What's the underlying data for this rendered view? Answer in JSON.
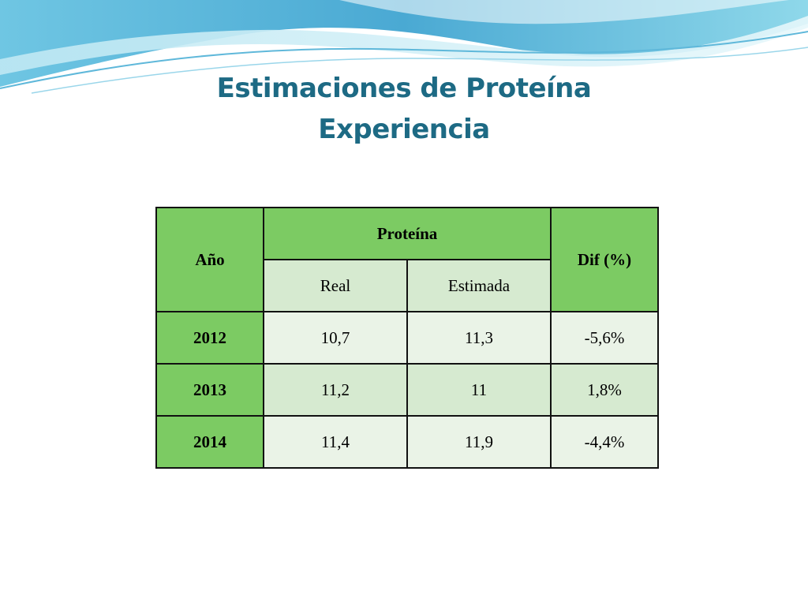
{
  "slide": {
    "title_line1": "Estimaciones de Proteína",
    "title_line2": "Experiencia"
  },
  "table": {
    "headers": {
      "year": "Año",
      "protein": "Proteína",
      "real": "Real",
      "estimated": "Estimada",
      "diff": "Dif (%)"
    },
    "rows": [
      {
        "year": "2012",
        "real": "10,7",
        "estimated": "11,3",
        "diff": "-5,6%"
      },
      {
        "year": "2013",
        "real": "11,2",
        "estimated": "11",
        "diff": "1,8%"
      },
      {
        "year": "2014",
        "real": "11,4",
        "estimated": "11,9",
        "diff": "-4,4%"
      }
    ]
  },
  "colors": {
    "title": "#1d6a84",
    "header_green": "#7ccb63",
    "cell_light": "#eaf3e7",
    "cell_medium": "#d6ead0",
    "wave_blue": "#4fb3d9"
  }
}
